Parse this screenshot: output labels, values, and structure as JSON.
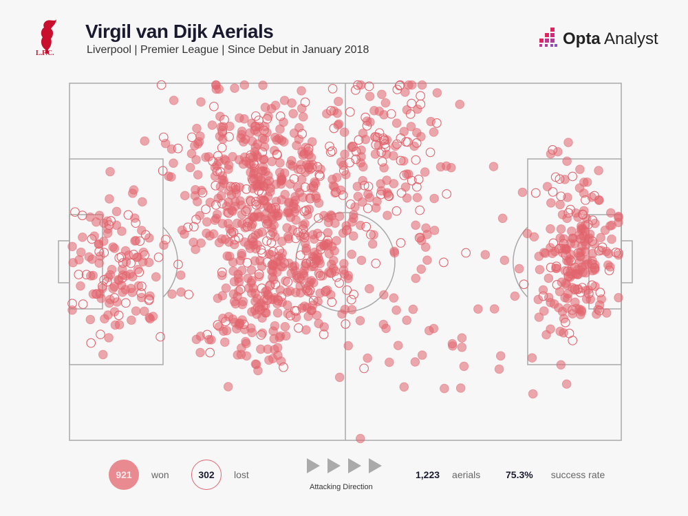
{
  "header": {
    "title": "Virgil van Dijk Aerials",
    "subtitle": "Liverpool | Premier League | Since Debut in January 2018",
    "club_logo_text": "L.F.C.",
    "brand_bold": "Opta",
    "brand_light": "Analyst"
  },
  "legend": {
    "won_count": "921",
    "won_label": "won",
    "lost_count": "302",
    "lost_label": "lost",
    "direction_label": "Attacking Direction",
    "total": "1,223",
    "total_label": "aerials",
    "rate": "75.3%",
    "rate_label": "success rate"
  },
  "colors": {
    "won": "#e2656e",
    "lost": "#e2656e",
    "pitch_line": "#a8a8a8",
    "background": "#f7f7f8"
  },
  "chart_data": {
    "type": "scatter",
    "title": "Virgil van Dijk Aerials",
    "xlim": [
      0,
      100
    ],
    "ylim": [
      0,
      100
    ],
    "x_meaning": "pitch length (0 = own goal, 100 = opponent goal)",
    "y_meaning": "pitch width (0 = top touchline)",
    "series": [
      {
        "name": "won",
        "count": 921
      },
      {
        "name": "lost",
        "count": 302
      }
    ],
    "approximate_clusters": [
      {
        "x": 8.6,
        "y": 51,
        "sx": 4,
        "sy": 10,
        "won": 90,
        "lost": 35
      },
      {
        "x": 34.8,
        "y": 27,
        "sx": 8,
        "sy": 12,
        "won": 300,
        "lost": 70
      },
      {
        "x": 34.8,
        "y": 58,
        "sx": 7,
        "sy": 12,
        "won": 180,
        "lost": 50
      },
      {
        "x": 55,
        "y": 19,
        "sx": 6,
        "sy": 12,
        "won": 70,
        "lost": 70
      },
      {
        "x": 46,
        "y": 50,
        "sx": 4,
        "sy": 8,
        "won": 60,
        "lost": 20
      },
      {
        "x": 92,
        "y": 48,
        "sx": 3.5,
        "sy": 10,
        "won": 150,
        "lost": 50
      },
      {
        "x": 68,
        "y": 55,
        "sx": 14,
        "sy": 22,
        "won": 71,
        "lost": 7
      }
    ]
  }
}
